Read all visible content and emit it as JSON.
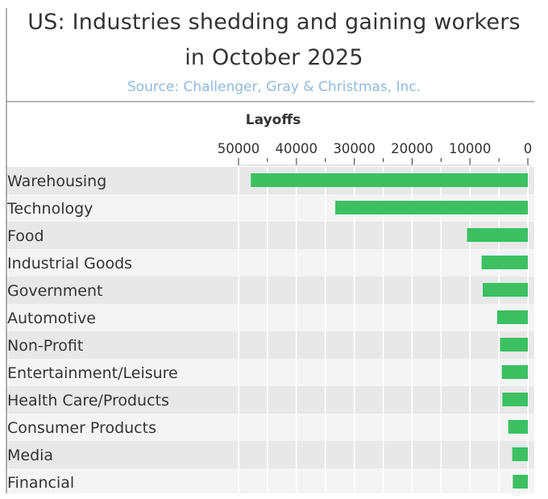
{
  "title_lines": [
    "US: Industries shedding and gaining workers",
    "in October 2025"
  ],
  "subtitle": "Source: Challenger, Gray & Christmas, Inc.",
  "colors": {
    "bar": "#3cc062",
    "title": "#333333",
    "subtitle": "#8fb9dd",
    "band_dark": "#e8e8e8",
    "band_light": "#f4f4f4",
    "frame": "#8a8a8a"
  },
  "chart_data": {
    "type": "bar",
    "orientation": "horizontal",
    "x_axis_reversed": true,
    "xlabel": "Layoffs",
    "ylabel": "",
    "xlim": [
      0,
      50000
    ],
    "ticks": [
      50000,
      40000,
      30000,
      20000,
      10000,
      0
    ],
    "tick_labels": [
      "50000",
      "40000",
      "30000",
      "20000",
      "10000",
      "0"
    ],
    "grid": true,
    "categories": [
      "Warehousing",
      "Technology",
      "Food",
      "Industrial Goods",
      "Government",
      "Automotive",
      "Non-Profit",
      "Entertainment/Leisure",
      "Health Care/Products",
      "Consumer Products",
      "Media",
      "Financial"
    ],
    "values": [
      47878,
      33281,
      10510,
      8000,
      7800,
      5300,
      4800,
      4500,
      4400,
      3400,
      2700,
      2600
    ]
  }
}
